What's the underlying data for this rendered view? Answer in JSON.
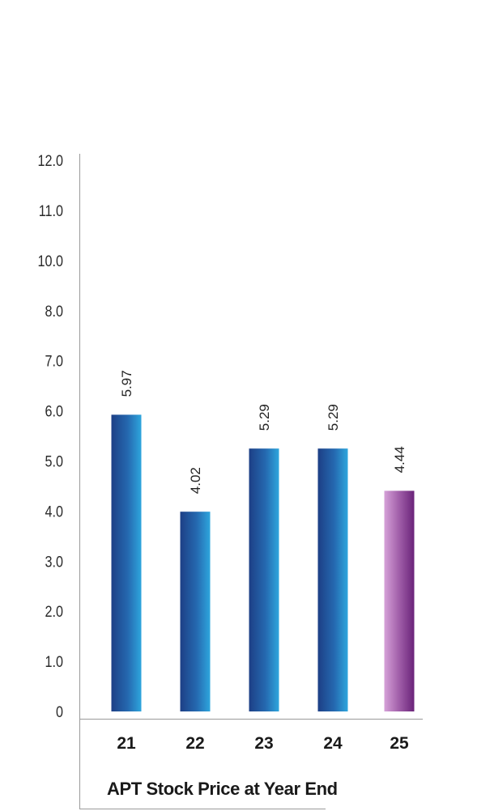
{
  "chart_data": {
    "type": "bar",
    "title": "APT Stock Price at Year End",
    "xlabel": "",
    "ylabel": "",
    "y_tick_labels": [
      "0",
      "1.0",
      "2.0",
      "3.0",
      "4.0",
      "5.0",
      "6.0",
      "7.0",
      "8.0",
      "10.0",
      "11.0",
      "12.0"
    ],
    "categories": [
      "21",
      "22",
      "23",
      "24",
      "25"
    ],
    "values": [
      5.97,
      4.02,
      5.29,
      5.29,
      4.44
    ],
    "value_labels": [
      "5.97",
      "4.02",
      "5.29",
      "5.29",
      "4.44"
    ],
    "ylim": [
      0,
      12
    ],
    "grid": false,
    "legend": "none",
    "colors": {
      "blue_dark": "#1d3f86",
      "blue_mid": "#2569b0",
      "blue_light": "#2ea6dd",
      "purple_light": "#d6a2d8",
      "purple_dark": "#6a2379",
      "highlight_category": "25"
    }
  }
}
